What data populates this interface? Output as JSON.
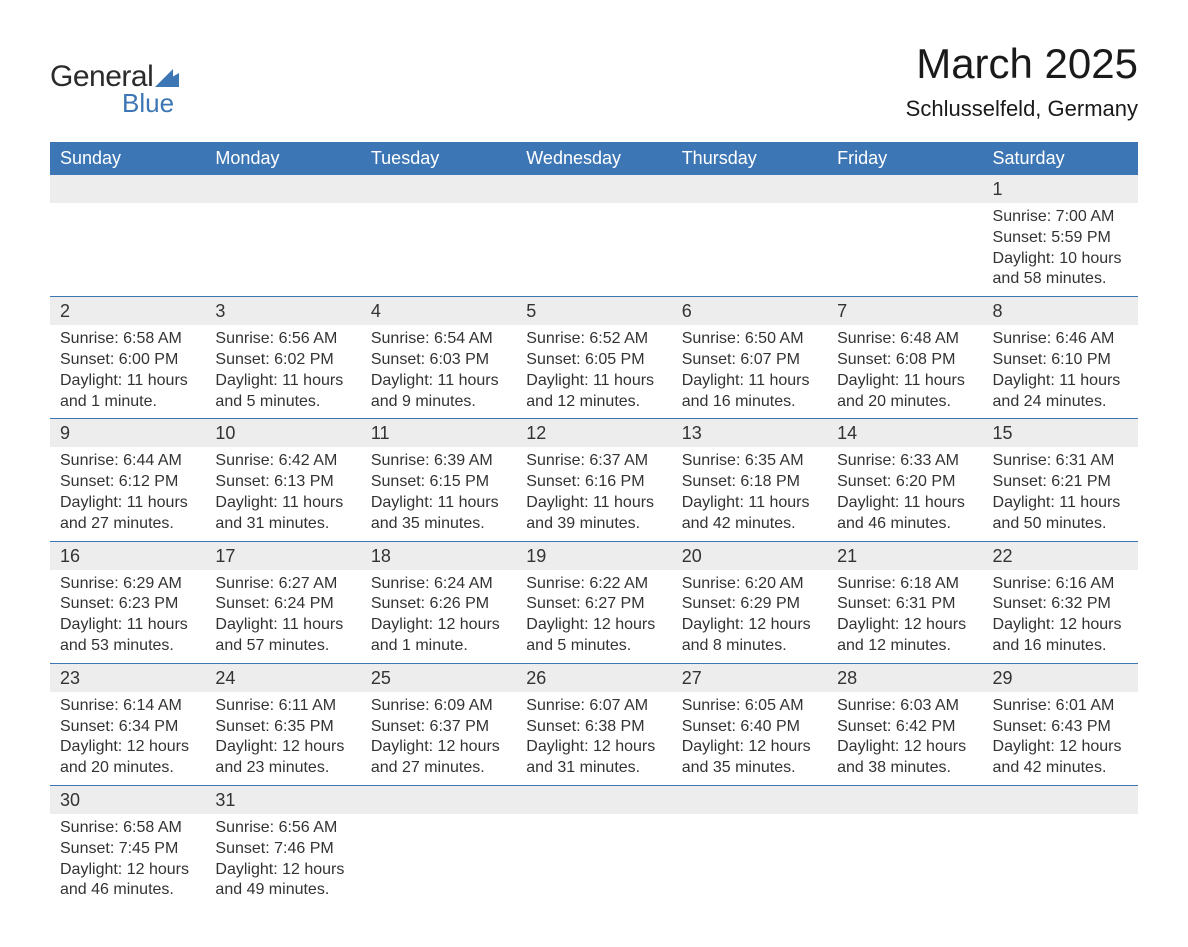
{
  "logo": {
    "text1": "General",
    "text2": "Blue",
    "color1": "#2b2b2b",
    "color2": "#3d76b5"
  },
  "header": {
    "title": "March 2025",
    "location": "Schlusselfeld, Germany"
  },
  "calendar": {
    "header_bg": "#3d76b5",
    "header_fg": "#ffffff",
    "daynum_bg": "#ededed",
    "border_color": "#3d76b5",
    "text_color": "#333333",
    "columns": [
      "Sunday",
      "Monday",
      "Tuesday",
      "Wednesday",
      "Thursday",
      "Friday",
      "Saturday"
    ],
    "weeks": [
      [
        null,
        null,
        null,
        null,
        null,
        null,
        {
          "num": "1",
          "sunrise": "Sunrise: 7:00 AM",
          "sunset": "Sunset: 5:59 PM",
          "day1": "Daylight: 10 hours",
          "day2": "and 58 minutes."
        }
      ],
      [
        {
          "num": "2",
          "sunrise": "Sunrise: 6:58 AM",
          "sunset": "Sunset: 6:00 PM",
          "day1": "Daylight: 11 hours",
          "day2": "and 1 minute."
        },
        {
          "num": "3",
          "sunrise": "Sunrise: 6:56 AM",
          "sunset": "Sunset: 6:02 PM",
          "day1": "Daylight: 11 hours",
          "day2": "and 5 minutes."
        },
        {
          "num": "4",
          "sunrise": "Sunrise: 6:54 AM",
          "sunset": "Sunset: 6:03 PM",
          "day1": "Daylight: 11 hours",
          "day2": "and 9 minutes."
        },
        {
          "num": "5",
          "sunrise": "Sunrise: 6:52 AM",
          "sunset": "Sunset: 6:05 PM",
          "day1": "Daylight: 11 hours",
          "day2": "and 12 minutes."
        },
        {
          "num": "6",
          "sunrise": "Sunrise: 6:50 AM",
          "sunset": "Sunset: 6:07 PM",
          "day1": "Daylight: 11 hours",
          "day2": "and 16 minutes."
        },
        {
          "num": "7",
          "sunrise": "Sunrise: 6:48 AM",
          "sunset": "Sunset: 6:08 PM",
          "day1": "Daylight: 11 hours",
          "day2": "and 20 minutes."
        },
        {
          "num": "8",
          "sunrise": "Sunrise: 6:46 AM",
          "sunset": "Sunset: 6:10 PM",
          "day1": "Daylight: 11 hours",
          "day2": "and 24 minutes."
        }
      ],
      [
        {
          "num": "9",
          "sunrise": "Sunrise: 6:44 AM",
          "sunset": "Sunset: 6:12 PM",
          "day1": "Daylight: 11 hours",
          "day2": "and 27 minutes."
        },
        {
          "num": "10",
          "sunrise": "Sunrise: 6:42 AM",
          "sunset": "Sunset: 6:13 PM",
          "day1": "Daylight: 11 hours",
          "day2": "and 31 minutes."
        },
        {
          "num": "11",
          "sunrise": "Sunrise: 6:39 AM",
          "sunset": "Sunset: 6:15 PM",
          "day1": "Daylight: 11 hours",
          "day2": "and 35 minutes."
        },
        {
          "num": "12",
          "sunrise": "Sunrise: 6:37 AM",
          "sunset": "Sunset: 6:16 PM",
          "day1": "Daylight: 11 hours",
          "day2": "and 39 minutes."
        },
        {
          "num": "13",
          "sunrise": "Sunrise: 6:35 AM",
          "sunset": "Sunset: 6:18 PM",
          "day1": "Daylight: 11 hours",
          "day2": "and 42 minutes."
        },
        {
          "num": "14",
          "sunrise": "Sunrise: 6:33 AM",
          "sunset": "Sunset: 6:20 PM",
          "day1": "Daylight: 11 hours",
          "day2": "and 46 minutes."
        },
        {
          "num": "15",
          "sunrise": "Sunrise: 6:31 AM",
          "sunset": "Sunset: 6:21 PM",
          "day1": "Daylight: 11 hours",
          "day2": "and 50 minutes."
        }
      ],
      [
        {
          "num": "16",
          "sunrise": "Sunrise: 6:29 AM",
          "sunset": "Sunset: 6:23 PM",
          "day1": "Daylight: 11 hours",
          "day2": "and 53 minutes."
        },
        {
          "num": "17",
          "sunrise": "Sunrise: 6:27 AM",
          "sunset": "Sunset: 6:24 PM",
          "day1": "Daylight: 11 hours",
          "day2": "and 57 minutes."
        },
        {
          "num": "18",
          "sunrise": "Sunrise: 6:24 AM",
          "sunset": "Sunset: 6:26 PM",
          "day1": "Daylight: 12 hours",
          "day2": "and 1 minute."
        },
        {
          "num": "19",
          "sunrise": "Sunrise: 6:22 AM",
          "sunset": "Sunset: 6:27 PM",
          "day1": "Daylight: 12 hours",
          "day2": "and 5 minutes."
        },
        {
          "num": "20",
          "sunrise": "Sunrise: 6:20 AM",
          "sunset": "Sunset: 6:29 PM",
          "day1": "Daylight: 12 hours",
          "day2": "and 8 minutes."
        },
        {
          "num": "21",
          "sunrise": "Sunrise: 6:18 AM",
          "sunset": "Sunset: 6:31 PM",
          "day1": "Daylight: 12 hours",
          "day2": "and 12 minutes."
        },
        {
          "num": "22",
          "sunrise": "Sunrise: 6:16 AM",
          "sunset": "Sunset: 6:32 PM",
          "day1": "Daylight: 12 hours",
          "day2": "and 16 minutes."
        }
      ],
      [
        {
          "num": "23",
          "sunrise": "Sunrise: 6:14 AM",
          "sunset": "Sunset: 6:34 PM",
          "day1": "Daylight: 12 hours",
          "day2": "and 20 minutes."
        },
        {
          "num": "24",
          "sunrise": "Sunrise: 6:11 AM",
          "sunset": "Sunset: 6:35 PM",
          "day1": "Daylight: 12 hours",
          "day2": "and 23 minutes."
        },
        {
          "num": "25",
          "sunrise": "Sunrise: 6:09 AM",
          "sunset": "Sunset: 6:37 PM",
          "day1": "Daylight: 12 hours",
          "day2": "and 27 minutes."
        },
        {
          "num": "26",
          "sunrise": "Sunrise: 6:07 AM",
          "sunset": "Sunset: 6:38 PM",
          "day1": "Daylight: 12 hours",
          "day2": "and 31 minutes."
        },
        {
          "num": "27",
          "sunrise": "Sunrise: 6:05 AM",
          "sunset": "Sunset: 6:40 PM",
          "day1": "Daylight: 12 hours",
          "day2": "and 35 minutes."
        },
        {
          "num": "28",
          "sunrise": "Sunrise: 6:03 AM",
          "sunset": "Sunset: 6:42 PM",
          "day1": "Daylight: 12 hours",
          "day2": "and 38 minutes."
        },
        {
          "num": "29",
          "sunrise": "Sunrise: 6:01 AM",
          "sunset": "Sunset: 6:43 PM",
          "day1": "Daylight: 12 hours",
          "day2": "and 42 minutes."
        }
      ],
      [
        {
          "num": "30",
          "sunrise": "Sunrise: 6:58 AM",
          "sunset": "Sunset: 7:45 PM",
          "day1": "Daylight: 12 hours",
          "day2": "and 46 minutes."
        },
        {
          "num": "31",
          "sunrise": "Sunrise: 6:56 AM",
          "sunset": "Sunset: 7:46 PM",
          "day1": "Daylight: 12 hours",
          "day2": "and 49 minutes."
        },
        null,
        null,
        null,
        null,
        null
      ]
    ]
  }
}
